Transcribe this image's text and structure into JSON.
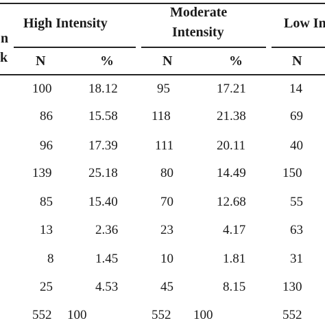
{
  "table": {
    "stub_fragments": [
      "n",
      "k"
    ],
    "group_headers": [
      {
        "label_lines": [
          "High Intensity"
        ]
      },
      {
        "label_lines": [
          "Moderate",
          "Intensity"
        ]
      },
      {
        "label_lines": [
          "Low In"
        ]
      }
    ],
    "sub_headers": [
      "N",
      "%",
      "N",
      "%",
      "N"
    ],
    "rows": [
      [
        "100",
        "18.12",
        "95",
        "17.21",
        "14"
      ],
      [
        "86",
        "15.58",
        "118",
        "21.38",
        "69"
      ],
      [
        "96",
        "17.39",
        "111",
        "20.11",
        "40"
      ],
      [
        "139",
        "25.18",
        "80",
        "14.49",
        "150"
      ],
      [
        "85",
        "15.40",
        "70",
        "12.68",
        "55"
      ],
      [
        "13",
        "2.36",
        "23",
        "4.17",
        "63"
      ],
      [
        "8",
        "1.45",
        "10",
        "1.81",
        "31"
      ],
      [
        "25",
        "4.53",
        "45",
        "8.15",
        "130"
      ],
      [
        "552",
        "100",
        "552",
        "100",
        "552"
      ]
    ]
  }
}
